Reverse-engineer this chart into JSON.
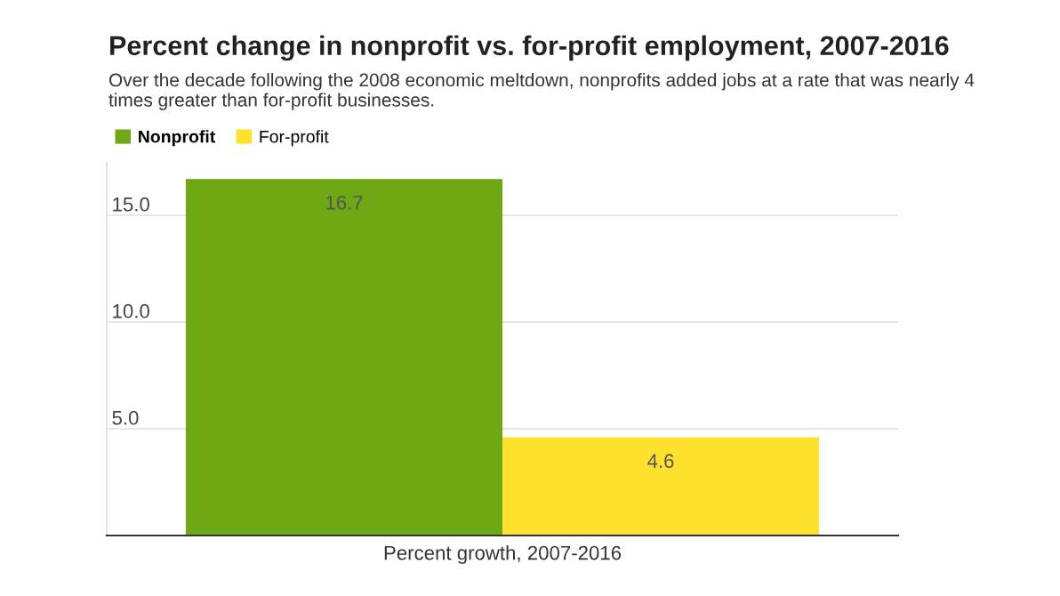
{
  "chart_data": {
    "type": "bar",
    "title": "Percent change in nonprofit vs. for-profit employment, 2007-2016",
    "subtitle": "Over the decade following the 2008 economic meltdown, nonprofits added jobs at a rate that was nearly 4 times greater than for-profit businesses.",
    "categories": [
      "Percent growth, 2007-2016"
    ],
    "series": [
      {
        "name": "Nonprofit",
        "color": "#6ea814",
        "values": [
          16.7
        ]
      },
      {
        "name": "For-profit",
        "color": "#fde12d",
        "values": [
          4.6
        ]
      }
    ],
    "yticks": [
      {
        "value": 0,
        "label": null
      },
      {
        "value": 5,
        "label": "5.0"
      },
      {
        "value": 10,
        "label": "10.0"
      },
      {
        "value": 15,
        "label": "15.0"
      }
    ],
    "ylim": [
      0,
      17.5
    ],
    "grid": "y",
    "legend": "top left",
    "data_labels": true
  }
}
